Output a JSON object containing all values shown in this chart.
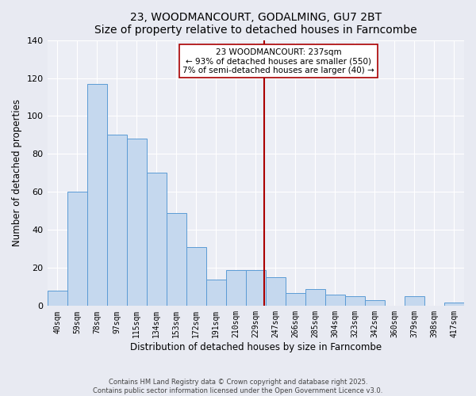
{
  "title": "23, WOODMANCOURT, GODALMING, GU7 2BT",
  "subtitle": "Size of property relative to detached houses in Farncombe",
  "xlabel": "Distribution of detached houses by size in Farncombe",
  "ylabel": "Number of detached properties",
  "categories": [
    "40sqm",
    "59sqm",
    "78sqm",
    "97sqm",
    "115sqm",
    "134sqm",
    "153sqm",
    "172sqm",
    "191sqm",
    "210sqm",
    "229sqm",
    "247sqm",
    "266sqm",
    "285sqm",
    "304sqm",
    "323sqm",
    "342sqm",
    "360sqm",
    "379sqm",
    "398sqm",
    "417sqm"
  ],
  "values": [
    8,
    60,
    117,
    90,
    88,
    70,
    49,
    31,
    14,
    19,
    19,
    15,
    7,
    9,
    6,
    5,
    3,
    0,
    5,
    0,
    2
  ],
  "bar_color": "#c5d8ee",
  "bar_edge_color": "#5b9bd5",
  "bar_width": 1.0,
  "vline_color": "#aa0000",
  "annotation_line1": "23 WOODMANCOURT: 237sqm",
  "annotation_line2": "← 93% of detached houses are smaller (550)",
  "annotation_line3": "7% of semi-detached houses are larger (40) →",
  "box_facecolor": "#ffffff",
  "box_edgecolor": "#aa0000",
  "ylim": [
    0,
    140
  ],
  "yticks": [
    0,
    20,
    40,
    60,
    80,
    100,
    120,
    140
  ],
  "background_color": "#e8eaf2",
  "plot_background": "#eceef5",
  "grid_color": "#ffffff",
  "footer_line1": "Contains HM Land Registry data © Crown copyright and database right 2025.",
  "footer_line2": "Contains public sector information licensed under the Open Government Licence v3.0."
}
